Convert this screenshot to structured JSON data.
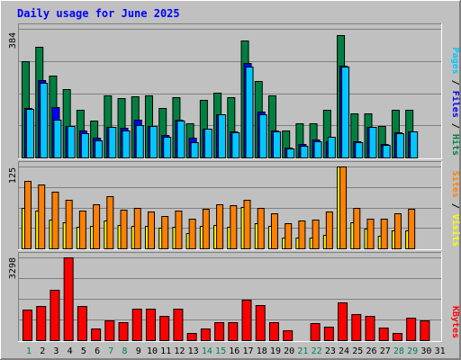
{
  "chart_data": {
    "type": "bar",
    "title": "Daily usage for June 2025",
    "categories": [
      "1",
      "2",
      "3",
      "4",
      "5",
      "6",
      "7",
      "8",
      "9",
      "10",
      "11",
      "12",
      "13",
      "14",
      "15",
      "16",
      "17",
      "18",
      "19",
      "20",
      "21",
      "22",
      "23",
      "24",
      "25",
      "26",
      "27",
      "28",
      "29",
      "30",
      "31"
    ],
    "weekend_days": [
      "1",
      "7",
      "8",
      "14",
      "15",
      "21",
      "22",
      "28",
      "29"
    ],
    "panels": [
      {
        "id": "top",
        "max_label": "384",
        "ylim": [
          0,
          384
        ],
        "axis_title": [
          {
            "text": "Pages",
            "color": "#00c8ff"
          },
          {
            "text": " / ",
            "color": "#000000"
          },
          {
            "text": "Files",
            "color": "#0000ff"
          },
          {
            "text": " / ",
            "color": "#000000"
          },
          {
            "text": "Hits",
            "color": "#008040"
          }
        ],
        "series": [
          {
            "name": "Hits",
            "color": "#008040",
            "values": [
              287,
              330,
              245,
              203,
              143,
              110,
              185,
              178,
              183,
              185,
              147,
              180,
              103,
              172,
              194,
              180,
              348,
              229,
              185,
              80,
              101,
              103,
              142,
              365,
              132,
              132,
              93,
              142,
              142,
              0,
              0
            ]
          },
          {
            "name": "Files",
            "color": "#0000ff",
            "values": [
              147,
              232,
              150,
              95,
              80,
              58,
              92,
              88,
              112,
              93,
              66,
              113,
              58,
              86,
              130,
              78,
              283,
              137,
              81,
              30,
              40,
              55,
              47,
              275,
              48,
              92,
              40,
              76,
              77,
              0,
              0
            ]
          },
          {
            "name": "Pages",
            "color": "#00c8ff",
            "values": [
              146,
              222,
              113,
              94,
              72,
              50,
              91,
              81,
              96,
              93,
              63,
              110,
              46,
              86,
              129,
              76,
              272,
              129,
              79,
              26,
              36,
              49,
              62,
              271,
              46,
              91,
              37,
              72,
              77,
              0,
              0
            ]
          }
        ]
      },
      {
        "id": "middle",
        "max_label": "125",
        "ylim": [
          0,
          125
        ],
        "axis_title": [
          {
            "text": "Sites",
            "color": "#ff8000"
          },
          {
            "text": " / ",
            "color": "#000000"
          },
          {
            "text": "Visits",
            "color": "#ffff00"
          }
        ],
        "series": [
          {
            "name": "Visits",
            "color": "#ffff00",
            "values": [
              62,
              58,
              44,
              40,
              33,
              35,
              43,
              36,
              35,
              35,
              31,
              33,
              23,
              34,
              36,
              33,
              63,
              39,
              35,
              17,
              17,
              17,
              20,
              125,
              40,
              30,
              19,
              27,
              28,
              0,
              0
            ]
          },
          {
            "name": "Sites",
            "color": "#ff8000",
            "values": [
              103,
              98,
              86,
              74,
              58,
              67,
              80,
              59,
              62,
              57,
              49,
              58,
              46,
              60,
              67,
              66,
              74,
              62,
              54,
              39,
              42,
              44,
              57,
              125,
              62,
              45,
              45,
              53,
              60,
              0,
              0
            ]
          }
        ]
      },
      {
        "id": "bottom",
        "max_label": "3298",
        "ylim": [
          0,
          3298
        ],
        "axis_title": [
          {
            "text": "KBytes",
            "color": "#ff0000"
          }
        ],
        "series": [
          {
            "name": "KBytes",
            "color": "#ff0000",
            "values": [
              1215,
              1360,
              2000,
              3298,
              1360,
              450,
              781,
              727,
              1240,
              1240,
              972,
              1240,
              299,
              472,
              720,
              727,
              1624,
              1402,
              727,
              402,
              0,
              666,
              549,
              1510,
              1045,
              972,
              515,
              279,
              909,
              781,
              0
            ]
          }
        ]
      }
    ],
    "x_label_colors": {
      "weekday": "#000000",
      "weekend": "#00805a"
    },
    "grid": true,
    "background": "#c0c0c0"
  }
}
